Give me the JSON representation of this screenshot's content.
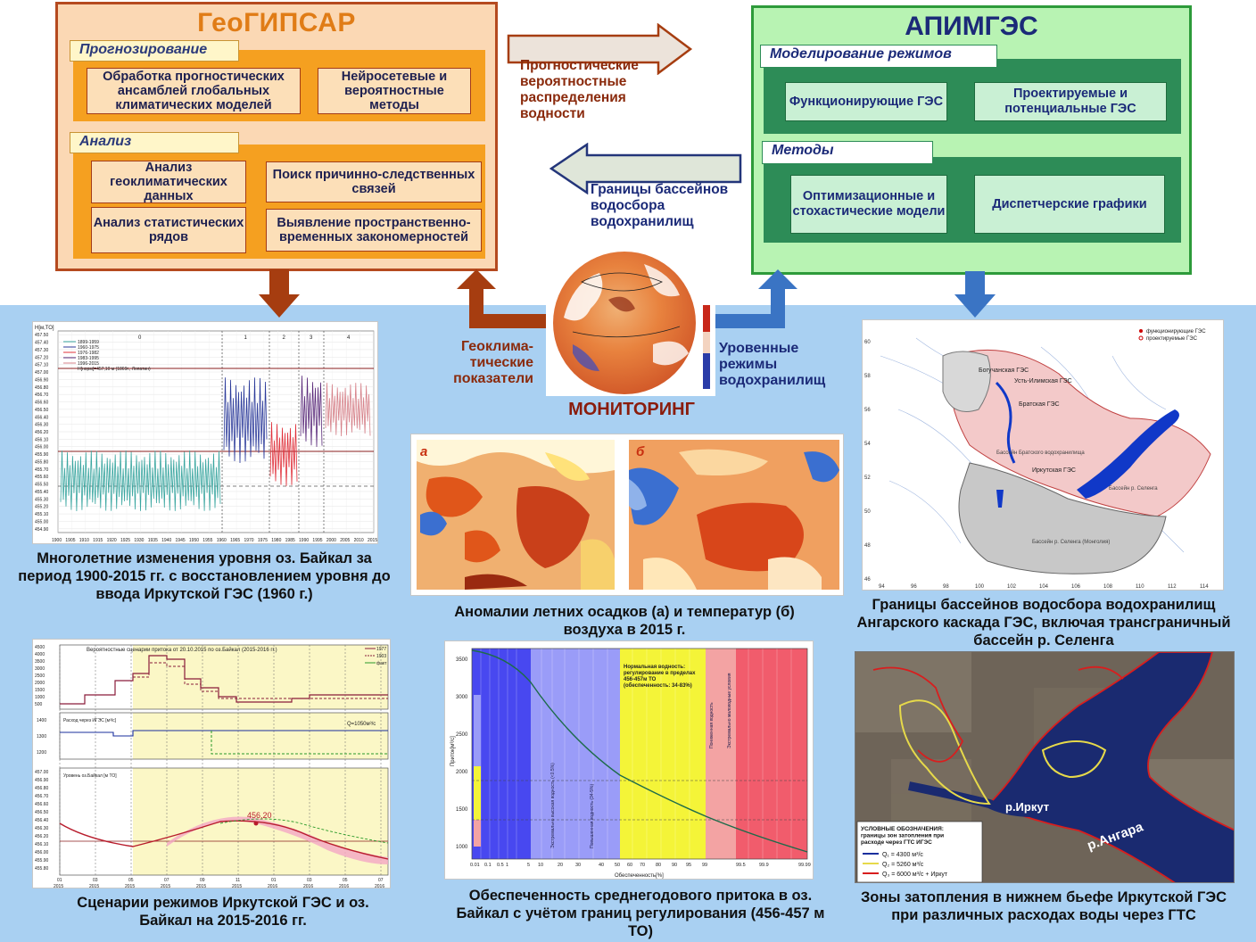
{
  "geo": {
    "title": "ГеоГИПСАР",
    "forecast_label": "Прогнозирование",
    "box_ensembles": "Обработка прогностических ансамблей глобальных климатических моделей",
    "box_neural": "Нейросетевые и вероятностные методы",
    "analysis_label": "Анализ",
    "box_geoclim": "Анализ геоклиматических данных",
    "box_causal": "Поиск причинно-следственных связей",
    "box_stat": "Анализ статистических рядов",
    "box_spatial": "Выявление пространственно-временных закономерностей"
  },
  "api": {
    "title": "АПИМГЭС",
    "modeling_label": "Моделирование режимов",
    "box_operating": "Функционирующие ГЭС",
    "box_projected": "Проектируемые и потенциальные ГЭС",
    "methods_label": "Методы",
    "box_optim": "Оптимизационные и стохастические модели",
    "box_dispatch": "Диспетчерские графики"
  },
  "flows": {
    "to_api": "Прогностические вероятностные распределения водности",
    "to_geo": "Границы бассейнов водосбора водохранилищ",
    "geo_indicators": "Геоклима-тические показатели",
    "level_regimes": "Уровенные режимы водохранилищ",
    "monitoring": "МОНИТОРИНГ"
  },
  "captions": {
    "baikal_level": "Многолетние изменения уровня оз. Байкал за период 1900-2015 гг. с восстановлением уровня до ввода Иркутской ГЭС (1960 г.)",
    "anomalies": "Аномалии летних осадков (а) и температур (б) воздуха в 2015 г.",
    "basins": "Границы бассейнов водосбора водохранилищ Ангарского каскада ГЭС, включая трансграничный бассейн р. Селенга",
    "scenarios": "Сценарии режимов Иркутской ГЭС и оз. Байкал на 2015-2016 гг.",
    "inflow": "Обеспеченность среднегодового притока в оз. Байкал с учётом границ регулирования (456-457 м ТО)",
    "flooding": "Зоны затопления в нижнем бьефе Иркутской ГЭС при различных расходах воды через ГТС"
  },
  "level_chart": {
    "ylabel": "Н[м,ТО]",
    "yticks": [
      "457.50",
      "457.40",
      "457.30",
      "457.20",
      "457.10",
      "457.00",
      "456.90",
      "456.80",
      "456.70",
      "456.60",
      "456.50",
      "456.40",
      "456.30",
      "456.20",
      "456.10",
      "456.00",
      "455.90",
      "455.80",
      "455.70",
      "455.60",
      "455.50",
      "455.40",
      "455.30",
      "455.20",
      "455.10",
      "455.00",
      "454.90"
    ],
    "xticks": [
      "1900",
      "1905",
      "1910",
      "1915",
      "1920",
      "1925",
      "1930",
      "1935",
      "1940",
      "1945",
      "1950",
      "1955",
      "1960",
      "1965",
      "1970",
      "1975",
      "1980",
      "1985",
      "1990",
      "1995",
      "2000",
      "2005",
      "2010",
      "2015"
    ],
    "periods": [
      "0",
      "1",
      "2",
      "3",
      "4"
    ],
    "legend": [
      "1899-1959",
      "1960-1975",
      "1976-1982",
      "1983-1995",
      "1996-2015",
      "Н[норм]=457,10 м (1869г., Лопатин)"
    ]
  },
  "anomaly_maps": {
    "label_a": "а",
    "label_b": "б"
  },
  "basin_map": {
    "yticks": [
      "60",
      "58",
      "56",
      "54",
      "52",
      "50",
      "48",
      "46"
    ],
    "xticks": [
      "94",
      "96",
      "98",
      "100",
      "102",
      "104",
      "106",
      "108",
      "110",
      "112",
      "114"
    ],
    "places": [
      "Богучанская ГЭС",
      "Усть-Илимская ГЭС",
      "Братская ГЭС",
      "Иркутская ГЭС",
      "Бассейн Братского водохранилища",
      "Бассейн р. Селенга",
      "Бассейн р. Селенга (Монголия)",
      "оз. Байкал"
    ],
    "legend": [
      "функционирующие ГЭС",
      "проектируемые ГЭС"
    ]
  },
  "scenario_chart": {
    "title": "Вероятностные сценарии притока от 20.10.2015 по оз.Байкал (2015-2016 гг.)",
    "yticks_top": [
      "4500",
      "4000",
      "3500",
      "3000",
      "2500",
      "2000",
      "1500",
      "1000",
      "500"
    ],
    "yticks_mid": [
      "1400",
      "1300",
      "1200"
    ],
    "label_mid": "Расход через ИГЭС [м³/с]",
    "q_label": "Q=1050м³/с",
    "yticks_bot": [
      "457.00",
      "456.90",
      "456.80",
      "456.70",
      "456.60",
      "456.50",
      "456.40",
      "456.30",
      "456.20",
      "456.10",
      "456.00",
      "455.90",
      "455.80"
    ],
    "label_bot": "Уровень оз.Байкал [м ТО]",
    "annotation": "456,20",
    "legend": [
      "1977",
      "1903",
      "факт"
    ],
    "xticks": [
      "01",
      "03",
      "05",
      "07",
      "09",
      "11",
      "01",
      "03",
      "05",
      "07"
    ],
    "xyears": [
      "2015",
      "2015",
      "2015",
      "2015",
      "2015",
      "2015",
      "2016",
      "2016",
      "2016",
      "2016"
    ]
  },
  "inflow_chart": {
    "ylabel": "Приток[м³/с]",
    "xlabel": "Обеспеченность[%]",
    "yticks": [
      "3500",
      "3000",
      "2500",
      "2000",
      "1500",
      "1000"
    ],
    "xticks": [
      "0.01",
      "0.1",
      "0.5",
      "1",
      "5",
      "10",
      "20",
      "30",
      "40",
      "50",
      "60",
      "70",
      "80",
      "90",
      "95",
      "99",
      "99.5",
      "99.9",
      "99.99"
    ],
    "normal_note": "Нормальная водность: регулирование в пределах 456-457м ТО (обеспеченность: 34-83%)",
    "zones": [
      "Экстремально высокая водность (<0.5%)",
      "Повышенная водность (34-5%)",
      "Пониженная водность",
      "Экстремально маловодные условия"
    ]
  },
  "flood_map": {
    "label_irkut": "р.Иркут",
    "label_angara": "р.Ангара",
    "legend_title": "УСЛОВНЫЕ ОБОЗНАЧЕНИЯ: границы зон затопления при расходе через ГТС ИГЭС",
    "q1": "Q₁ = 4300 м³/с",
    "q2": "Q₂ = 5260 м³/с",
    "q3": "Q₃ = 6000 м³/с + Иркут",
    "colors": {
      "q1": "#1a2f9e",
      "q2": "#e6d94a",
      "q3": "#d81e1e"
    }
  },
  "colors": {
    "geo_fill": "#fbd8b4",
    "geo_border": "#b54a1f",
    "geo_section": "#f5a020",
    "api_fill": "#b8f3b3",
    "api_border": "#2d9a3a",
    "api_section": "#2d8c57",
    "background_blue": "#a9d0f2",
    "arrow_brown": "#a63d10",
    "arrow_blue": "#3a74c4"
  }
}
